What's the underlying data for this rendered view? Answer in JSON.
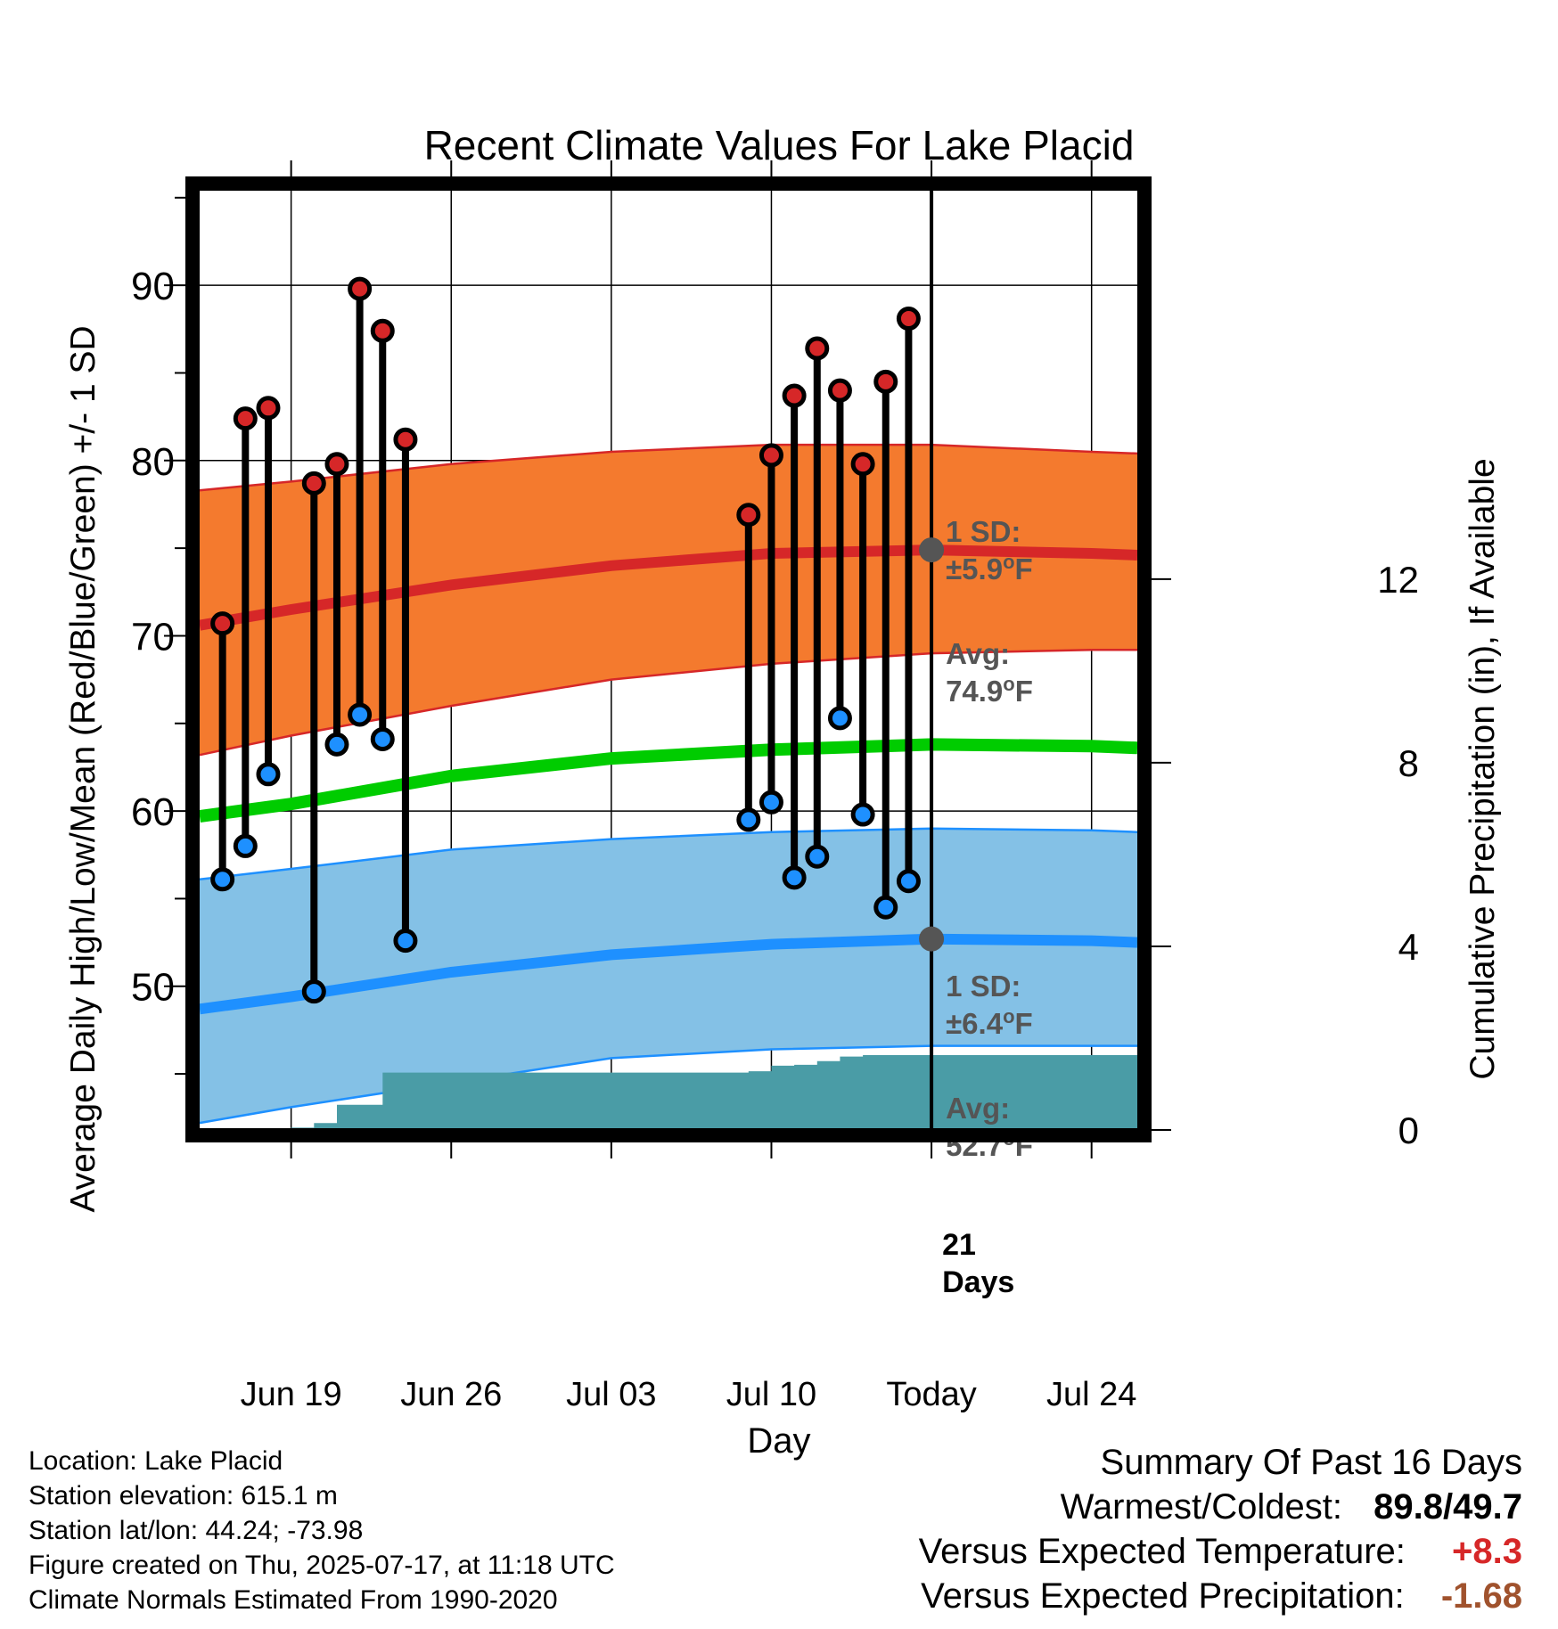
{
  "chart_data": {
    "type": "line",
    "title": "Recent Climate Values For Lake Placid",
    "xlabel": "Day",
    "ylabel": "Average Daily High/Low/Mean (Red/Blue/Green) +/- 1 SD",
    "y2label": "Cumulative Precipitation (in), If Available",
    "ylim": [
      41.8,
      95.5
    ],
    "y2lim": [
      0,
      20.5
    ],
    "yticks": [
      50,
      60,
      70,
      80,
      90
    ],
    "y2ticks": [
      0,
      4,
      8,
      12
    ],
    "x_domain": [
      "2025-06-15",
      "2025-07-26"
    ],
    "x_tick_labels": [
      {
        "date": "2025-06-19",
        "label": "Jun 19"
      },
      {
        "date": "2025-06-26",
        "label": "Jun 26"
      },
      {
        "date": "2025-07-03",
        "label": "Jul 03"
      },
      {
        "date": "2025-07-10",
        "label": "Jul 10"
      },
      {
        "date": "2025-07-17",
        "label": "Today"
      },
      {
        "date": "2025-07-24",
        "label": "Jul 24"
      }
    ],
    "grid": true,
    "today_date": "2025-07-17",
    "normals": {
      "dates": [
        "2025-06-15",
        "2025-06-19",
        "2025-06-26",
        "2025-07-03",
        "2025-07-10",
        "2025-07-17",
        "2025-07-24",
        "2025-07-26"
      ],
      "high_avg": [
        70.6,
        71.5,
        72.9,
        74.0,
        74.7,
        74.9,
        74.7,
        74.6
      ],
      "high_upper": [
        78.3,
        78.8,
        79.8,
        80.5,
        80.9,
        80.9,
        80.5,
        80.4
      ],
      "high_lower": [
        63.2,
        64.3,
        66.0,
        67.5,
        68.4,
        69.0,
        69.2,
        69.2
      ],
      "mean_avg": [
        59.7,
        60.4,
        62.0,
        63.0,
        63.5,
        63.8,
        63.7,
        63.6
      ],
      "low_avg": [
        48.7,
        49.4,
        50.8,
        51.8,
        52.4,
        52.7,
        52.6,
        52.5
      ],
      "low_upper": [
        56.1,
        56.7,
        57.8,
        58.4,
        58.8,
        59.0,
        58.9,
        58.8
      ],
      "low_lower": [
        42.2,
        43.1,
        44.5,
        45.9,
        46.4,
        46.6,
        46.6,
        46.6
      ]
    },
    "observed": [
      {
        "date": "2025-06-16",
        "high": 70.7,
        "low": 56.1
      },
      {
        "date": "2025-06-17",
        "high": 82.4,
        "low": 58.0
      },
      {
        "date": "2025-06-18",
        "high": 83.0,
        "low": 62.1
      },
      {
        "date": "2025-06-20",
        "high": 78.7,
        "low": 49.7
      },
      {
        "date": "2025-06-21",
        "high": 79.8,
        "low": 63.8
      },
      {
        "date": "2025-06-22",
        "high": 89.8,
        "low": 65.5
      },
      {
        "date": "2025-06-23",
        "high": 87.4,
        "low": 64.1
      },
      {
        "date": "2025-06-24",
        "high": 81.2,
        "low": 52.6
      },
      {
        "date": "2025-07-09",
        "high": 76.9,
        "low": 59.5
      },
      {
        "date": "2025-07-10",
        "high": 80.3,
        "low": 60.5
      },
      {
        "date": "2025-07-11",
        "high": 83.7,
        "low": 56.2
      },
      {
        "date": "2025-07-12",
        "high": 86.4,
        "low": 57.4
      },
      {
        "date": "2025-07-13",
        "high": 84.0,
        "low": 65.3
      },
      {
        "date": "2025-07-14",
        "high": 79.8,
        "low": 59.8
      },
      {
        "date": "2025-07-15",
        "high": 84.5,
        "low": 54.5
      },
      {
        "date": "2025-07-16",
        "high": 88.1,
        "low": 56.0
      }
    ],
    "precip_cumulative": {
      "dates": [
        "2025-06-15",
        "2025-06-16",
        "2025-06-17",
        "2025-06-18",
        "2025-06-19",
        "2025-06-20",
        "2025-06-21",
        "2025-06-22",
        "2025-06-23",
        "2025-07-08",
        "2025-07-09",
        "2025-07-10",
        "2025-07-11",
        "2025-07-12",
        "2025-07-13",
        "2025-07-14",
        "2025-07-16",
        "2025-07-26"
      ],
      "values": [
        0,
        0,
        0,
        0,
        0.05,
        0.15,
        0.55,
        0.55,
        1.25,
        1.25,
        1.28,
        1.4,
        1.42,
        1.5,
        1.6,
        1.63,
        1.63,
        1.65
      ]
    },
    "annotations": {
      "high_sd_label": "1 SD:",
      "high_sd_value": "±5.9",
      "high_avg_label": "Avg:",
      "high_avg_value": "74.9",
      "low_sd_label": "1 SD:",
      "low_sd_value": "±6.4",
      "low_avg_label": "Avg:",
      "low_avg_value": "52.7",
      "degree_unit": "o",
      "unit_letter": "F",
      "days_number": "21",
      "days_word": "Days"
    }
  },
  "colors": {
    "high_band": "#f47a2e",
    "high_line": "#d62728",
    "low_band": "#84c1e6",
    "low_line": "#1e90ff",
    "mean_line": "#00cc00",
    "precip": "#4a9ca6",
    "high_marker": "#d62728",
    "low_marker": "#1e90ff",
    "annotation_text": "#555555",
    "temp_anomaly": "#d62728",
    "precip_anomaly": "#a0522d"
  },
  "footer": {
    "location": "Location: Lake Placid",
    "elevation": "Station elevation: 615.1 m",
    "latlon": "Station lat/lon: 44.24; -73.98",
    "created": "Figure created on Thu, 2025-07-17, at 11:18 UTC",
    "normals": "Climate Normals Estimated From 1990-2020"
  },
  "summary": {
    "title": "Summary Of Past 16 Days",
    "warmest_coldest_label": "Warmest/Coldest:",
    "warmest": "89.8",
    "separator": "/",
    "coldest": "49.7",
    "temp_label": "Versus Expected Temperature:",
    "temp_value": "+8.3",
    "precip_label": "Versus Expected Precipitation:",
    "precip_value": "-1.68"
  }
}
